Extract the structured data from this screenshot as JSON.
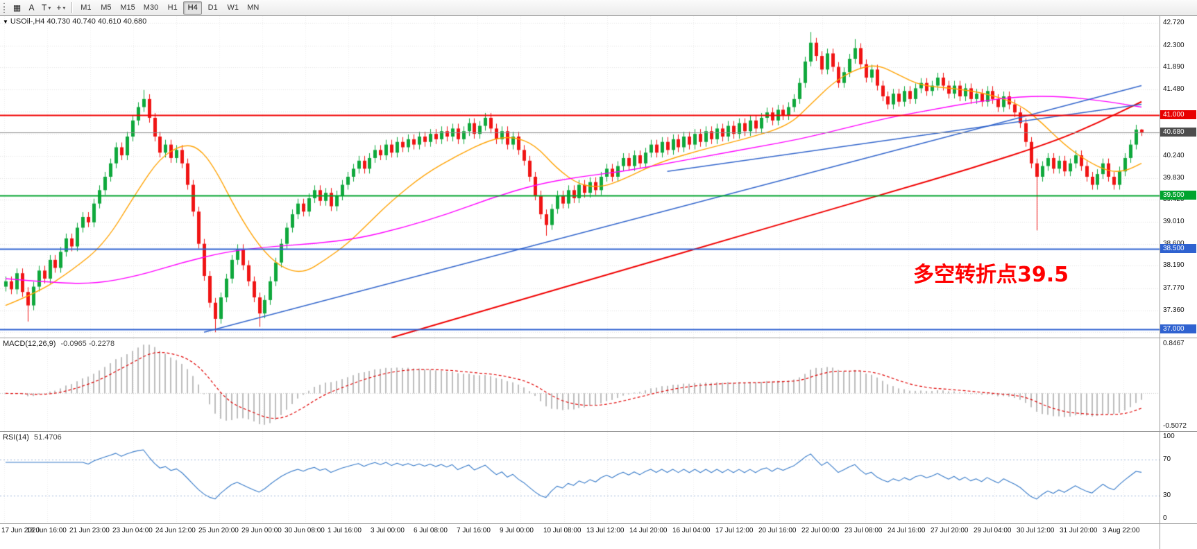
{
  "toolbar": {
    "tools": [
      {
        "name": "chart-grid",
        "glyph": "▦",
        "caret": false
      },
      {
        "name": "cursor-tool",
        "glyph": "A",
        "caret": false
      },
      {
        "name": "text-tool",
        "glyph": "T",
        "caret": true
      },
      {
        "name": "crosshair-tool",
        "glyph": "+",
        "caret": true
      }
    ],
    "periods": [
      "M1",
      "M5",
      "M15",
      "M30",
      "H1",
      "H4",
      "D1",
      "W1",
      "MN"
    ],
    "active_period": "H4"
  },
  "chart": {
    "header": {
      "symbol": "USOil-,H4",
      "ohlc": "40.730 40.740 40.610 40.680"
    },
    "annotation": {
      "text": "多空转折点39.5",
      "color": "#ff0000"
    },
    "price_axis": {
      "ticks": [
        "42.720",
        "42.300",
        "41.890",
        "41.480",
        "40.240",
        "39.830",
        "39.420",
        "39.010",
        "38.600",
        "38.190",
        "37.770",
        "37.360"
      ],
      "badges": [
        {
          "label": "41.000",
          "price": 41.0,
          "color": "#e80000"
        },
        {
          "label": "40.680",
          "price": 40.68,
          "color": "#4d4d4d"
        },
        {
          "label": "39.500",
          "price": 39.5,
          "color": "#00a42e"
        },
        {
          "label": "38.500",
          "price": 38.5,
          "color": "#2f62d0"
        },
        {
          "label": "37.000",
          "price": 37.0,
          "color": "#2f62d0"
        }
      ]
    },
    "time_axis": [
      "17 Jun 2020",
      "18 Jun 16:00",
      "21 Jun 23:00",
      "23 Jun 04:00",
      "24 Jun 12:00",
      "25 Jun 20:00",
      "29 Jun 00:00",
      "30 Jun 08:00",
      "1 Jul 16:00",
      "3 Jul 00:00",
      "6 Jul 08:00",
      "7 Jul 16:00",
      "9 Jul 00:00",
      "10 Jul 08:00",
      "13 Jul 12:00",
      "14 Jul 20:00",
      "16 Jul 04:00",
      "17 Jul 12:00",
      "20 Jul 16:00",
      "22 Jul 00:00",
      "23 Jul 08:00",
      "24 Jul 16:00",
      "27 Jul 20:00",
      "29 Jul 04:00",
      "30 Jul 12:00",
      "31 Jul 20:00",
      "3 Aug 22:00"
    ]
  },
  "chart_data": {
    "type": "candlestick",
    "symbol": "USOil",
    "period": "H4",
    "price_range": [
      36.85,
      42.85
    ],
    "first_open": 37.8,
    "wick": 0.09,
    "closes": [
      37.9,
      37.75,
      38.05,
      37.7,
      37.45,
      37.8,
      38.1,
      37.95,
      38.3,
      38.15,
      38.45,
      38.7,
      38.55,
      38.9,
      39.1,
      39.0,
      39.35,
      39.6,
      39.85,
      40.1,
      40.4,
      40.25,
      40.6,
      40.9,
      41.15,
      41.3,
      40.95,
      40.6,
      40.3,
      40.45,
      40.2,
      40.35,
      40.1,
      39.7,
      39.2,
      38.6,
      38.0,
      37.5,
      37.2,
      37.6,
      37.95,
      38.3,
      38.5,
      38.2,
      37.9,
      37.6,
      37.3,
      37.55,
      37.9,
      38.25,
      38.6,
      38.9,
      39.15,
      39.35,
      39.2,
      39.45,
      39.6,
      39.4,
      39.55,
      39.3,
      39.5,
      39.7,
      39.85,
      40.0,
      40.15,
      40.0,
      40.2,
      40.35,
      40.25,
      40.45,
      40.3,
      40.5,
      40.4,
      40.55,
      40.45,
      40.6,
      40.5,
      40.65,
      40.55,
      40.7,
      40.6,
      40.75,
      40.55,
      40.7,
      40.85,
      40.65,
      40.8,
      40.95,
      40.75,
      40.55,
      40.7,
      40.45,
      40.6,
      40.35,
      40.15,
      39.85,
      39.5,
      39.15,
      38.95,
      39.25,
      39.5,
      39.35,
      39.6,
      39.45,
      39.7,
      39.55,
      39.75,
      39.6,
      39.85,
      40.0,
      39.85,
      40.05,
      40.2,
      40.05,
      40.25,
      40.1,
      40.3,
      40.45,
      40.3,
      40.5,
      40.35,
      40.55,
      40.4,
      40.6,
      40.45,
      40.65,
      40.5,
      40.7,
      40.55,
      40.75,
      40.6,
      40.8,
      40.65,
      40.85,
      40.7,
      40.9,
      40.75,
      40.95,
      41.05,
      40.9,
      41.1,
      41.0,
      41.15,
      41.3,
      41.6,
      42.0,
      42.35,
      42.1,
      41.85,
      42.15,
      41.9,
      41.6,
      41.8,
      42.05,
      42.25,
      41.95,
      41.7,
      41.85,
      41.55,
      41.35,
      41.2,
      41.4,
      41.25,
      41.45,
      41.3,
      41.5,
      41.6,
      41.45,
      41.55,
      41.7,
      41.55,
      41.4,
      41.55,
      41.35,
      41.5,
      41.3,
      41.4,
      41.25,
      41.45,
      41.3,
      41.15,
      41.35,
      41.2,
      41.05,
      40.85,
      40.5,
      40.1,
      39.85,
      40.05,
      40.2,
      40.0,
      40.15,
      39.95,
      40.1,
      40.25,
      40.05,
      39.85,
      39.7,
      39.9,
      40.1,
      39.85,
      39.7,
      39.95,
      40.2,
      40.45,
      40.73,
      40.68
    ],
    "wick_overrides": {
      "4": {
        "l": 37.15
      },
      "25": {
        "h": 41.47
      },
      "38": {
        "l": 36.95
      },
      "46": {
        "l": 37.05
      },
      "98": {
        "l": 38.75
      },
      "146": {
        "h": 42.55
      },
      "154": {
        "h": 42.42
      },
      "187": {
        "l": 38.85
      }
    },
    "last_candle": {
      "o": 40.73,
      "h": 40.74,
      "l": 40.61,
      "c": 40.68
    },
    "grid_levels": [
      42.72,
      42.3,
      41.89,
      41.48,
      41.07,
      40.65,
      40.24,
      39.83,
      39.42,
      39.01,
      38.6,
      38.19,
      37.77,
      37.36,
      36.95
    ],
    "hlines": [
      {
        "price": 41.0,
        "color": "#f00000",
        "width": 2
      },
      {
        "price": 39.5,
        "color": "#00a42e",
        "width": 2
      },
      {
        "price": 38.5,
        "color": "#2f62d0",
        "width": 2
      },
      {
        "price": 37.0,
        "color": "#2f62d0",
        "width": 2
      }
    ],
    "bid_line": {
      "price": 40.68,
      "color": "#8a8a8a"
    },
    "trendlines": [
      {
        "i1": 36,
        "p1": 36.95,
        "i2": 206,
        "p2": 41.55,
        "color": "#3366cc"
      },
      {
        "i1": 120,
        "p1": 39.95,
        "i2": 206,
        "p2": 41.2,
        "color": "#3366cc"
      }
    ],
    "moving_averages": [
      {
        "name": "ma-fast-orange",
        "color": "#ffa200",
        "width": 1.4,
        "anchors": [
          [
            0,
            37.45
          ],
          [
            6,
            37.7
          ],
          [
            12,
            38.1
          ],
          [
            18,
            38.6
          ],
          [
            24,
            39.6
          ],
          [
            28,
            40.2
          ],
          [
            32,
            40.45
          ],
          [
            35,
            40.4
          ],
          [
            38,
            40.0
          ],
          [
            42,
            39.2
          ],
          [
            46,
            38.55
          ],
          [
            50,
            38.15
          ],
          [
            54,
            38.05
          ],
          [
            58,
            38.3
          ],
          [
            62,
            38.6
          ],
          [
            66,
            39.0
          ],
          [
            70,
            39.4
          ],
          [
            76,
            39.9
          ],
          [
            82,
            40.25
          ],
          [
            88,
            40.55
          ],
          [
            92,
            40.6
          ],
          [
            96,
            40.45
          ],
          [
            100,
            40.0
          ],
          [
            104,
            39.7
          ],
          [
            108,
            39.65
          ],
          [
            112,
            39.8
          ],
          [
            118,
            40.1
          ],
          [
            126,
            40.35
          ],
          [
            134,
            40.55
          ],
          [
            142,
            40.8
          ],
          [
            146,
            41.2
          ],
          [
            150,
            41.6
          ],
          [
            154,
            41.85
          ],
          [
            158,
            41.95
          ],
          [
            162,
            41.75
          ],
          [
            166,
            41.55
          ],
          [
            172,
            41.5
          ],
          [
            178,
            41.4
          ],
          [
            184,
            41.2
          ],
          [
            188,
            40.85
          ],
          [
            192,
            40.45
          ],
          [
            196,
            40.15
          ],
          [
            200,
            39.95
          ],
          [
            203,
            39.95
          ],
          [
            206,
            40.1
          ]
        ]
      },
      {
        "name": "ma-medium-magenta",
        "color": "#ff00ff",
        "width": 1.4,
        "anchors": [
          [
            0,
            37.95
          ],
          [
            8,
            37.88
          ],
          [
            16,
            37.85
          ],
          [
            24,
            38.0
          ],
          [
            32,
            38.25
          ],
          [
            40,
            38.45
          ],
          [
            48,
            38.55
          ],
          [
            56,
            38.6
          ],
          [
            64,
            38.7
          ],
          [
            72,
            38.9
          ],
          [
            80,
            39.15
          ],
          [
            88,
            39.45
          ],
          [
            96,
            39.7
          ],
          [
            104,
            39.85
          ],
          [
            112,
            39.95
          ],
          [
            120,
            40.1
          ],
          [
            128,
            40.25
          ],
          [
            136,
            40.4
          ],
          [
            144,
            40.55
          ],
          [
            152,
            40.75
          ],
          [
            160,
            40.95
          ],
          [
            168,
            41.1
          ],
          [
            176,
            41.25
          ],
          [
            184,
            41.35
          ],
          [
            192,
            41.35
          ],
          [
            200,
            41.25
          ],
          [
            206,
            41.15
          ]
        ]
      },
      {
        "name": "ma-slow-red",
        "color": "#f00000",
        "width": 2,
        "anchors": [
          [
            70,
            36.85
          ],
          [
            85,
            37.3
          ],
          [
            100,
            37.75
          ],
          [
            115,
            38.2
          ],
          [
            130,
            38.65
          ],
          [
            145,
            39.1
          ],
          [
            160,
            39.55
          ],
          [
            175,
            40.0
          ],
          [
            190,
            40.5
          ],
          [
            198,
            40.85
          ],
          [
            206,
            41.25
          ]
        ]
      }
    ],
    "candle_up_color": "#0fa83c",
    "candle_down_color": "#f01414"
  },
  "macd": {
    "label": "MACD(12,26,9)",
    "values": "-0.0965 -0.2278",
    "params": [
      12,
      26,
      9
    ],
    "axis_max": "0.8467",
    "axis_min": "-0.5072",
    "histogram_color": "#bdbdbd",
    "signal_color": "#e00000"
  },
  "rsi": {
    "label": "RSI(14)",
    "value": "51.4706",
    "period": 14,
    "levels": [
      70,
      30
    ],
    "axis_labels": [
      "100",
      "70",
      "30",
      "0"
    ],
    "line_color": "#3579c8",
    "level_color": "#9fb6da"
  }
}
